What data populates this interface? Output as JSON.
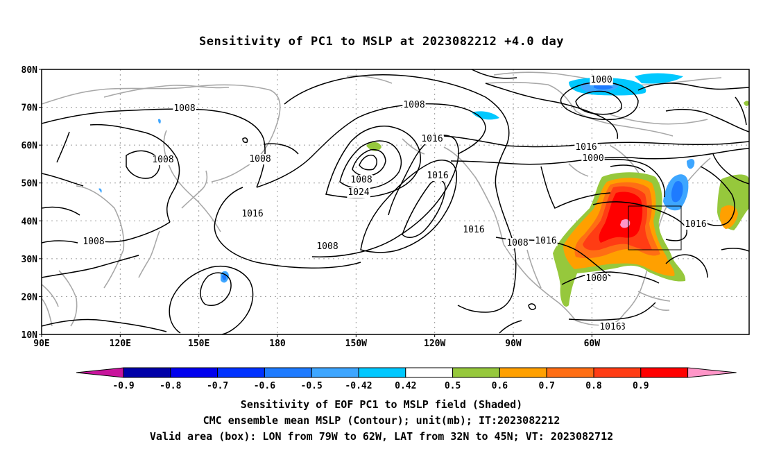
{
  "title": "Sensitivity of PC1 to MSLP at 2023082212 +4.0 day",
  "map": {
    "lat_ticks": [
      "10N",
      "20N",
      "30N",
      "40N",
      "50N",
      "60N",
      "70N",
      "80N"
    ],
    "lon_ticks": [
      "90E",
      "120E",
      "150E",
      "180",
      "150W",
      "120W",
      "90W",
      "60W"
    ],
    "contour_labels": [
      "1000",
      "1008",
      "1008",
      "1016",
      "1008",
      "1008",
      "1016",
      "1000",
      "1008",
      "1024",
      "1016",
      "1016",
      "1008",
      "1016",
      "1008",
      "1016",
      "1000",
      "1008",
      "1016",
      "1008",
      "1016"
    ],
    "valid_box": {
      "lon_from": "79W",
      "lon_to": "62W",
      "lat_from": "32N",
      "lat_to": "45N"
    }
  },
  "colorbar": {
    "ticks": [
      "-0.9",
      "-0.8",
      "-0.7",
      "-0.6",
      "-0.5",
      "-0.42",
      "0.42",
      "0.5",
      "0.6",
      "0.7",
      "0.8",
      "0.9"
    ],
    "colors": [
      "#0000a8",
      "#0000ee",
      "#0032ff",
      "#1e7bff",
      "#3ea6ff",
      "#00c8ff",
      "#ffffff",
      "#96c83c",
      "#ffa000",
      "#ff6e14",
      "#ff3c14",
      "#ff0000"
    ],
    "under_color": "#c8149c",
    "over_color": "#ff96c8"
  },
  "captions": {
    "line1": "Sensitivity of EOF PC1 to MSLP field (Shaded)",
    "line2": "CMC ensemble mean MSLP (Contour); unit(mb); IT:2023082212",
    "line3": "Valid area (box): LON from 79W to 62W, LAT from 32N to 45N; VT: 2023082712"
  }
}
